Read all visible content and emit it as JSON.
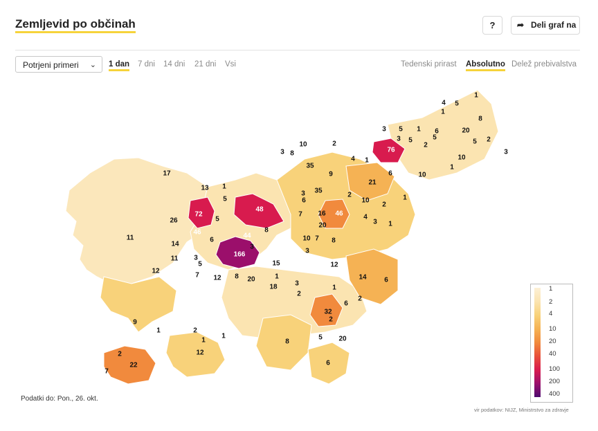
{
  "header": {
    "title": "Zemljevid po občinah",
    "help_label": "?",
    "share_icon": "share-arrow-icon",
    "share_label": "Deli graf na"
  },
  "controls": {
    "metric_select": "Potrjeni primeri",
    "ranges": [
      "1 dan",
      "7 dni",
      "14 dni",
      "21 dni",
      "Vsi"
    ],
    "active_range": "1 dan",
    "modes": [
      "Tedenski prirast",
      "Absolutno",
      "Delež prebivalstva"
    ],
    "active_mode": "Absolutno"
  },
  "legend": {
    "ticks": [
      "1",
      "2",
      "4",
      "10",
      "20",
      "40",
      "100",
      "200",
      "400"
    ],
    "colors": [
      "#fcf0d6",
      "#fbe4b1",
      "#f8d27a",
      "#f5b254",
      "#f18a3d",
      "#e8503a",
      "#d81b4e",
      "#9b0f6b",
      "#4d0a6e"
    ]
  },
  "footer": {
    "data_date": "Podatki do: Pon., 26. okt.",
    "source": "vir podatkov: NIJZ, Ministrstvo za zdravje"
  },
  "map_values": [
    "1",
    "4",
    "5",
    "1",
    "8",
    "3",
    "5",
    "1",
    "6",
    "20",
    "5",
    "2",
    "5",
    "3",
    "76",
    "10",
    "5",
    "2",
    "8",
    "3",
    "10",
    "2",
    "35",
    "9",
    "4",
    "1",
    "6",
    "21",
    "10",
    "1",
    "3",
    "17",
    "13",
    "1",
    "35",
    "3",
    "6",
    "2",
    "46",
    "10",
    "2",
    "4",
    "1",
    "26",
    "72",
    "5",
    "5",
    "48",
    "16",
    "7",
    "3",
    "11",
    "46",
    "6",
    "44",
    "8",
    "10",
    "7",
    "8",
    "1",
    "14",
    "3",
    "20",
    "12",
    "11",
    "3",
    "166",
    "15",
    "1",
    "3",
    "12",
    "5",
    "7",
    "12",
    "8",
    "20",
    "18",
    "3",
    "14",
    "6",
    "2",
    "1",
    "2",
    "32",
    "6",
    "2",
    "9",
    "1",
    "2",
    "1",
    "20",
    "5",
    "12",
    "1",
    "8",
    "22",
    "7",
    "6",
    "2"
  ]
}
